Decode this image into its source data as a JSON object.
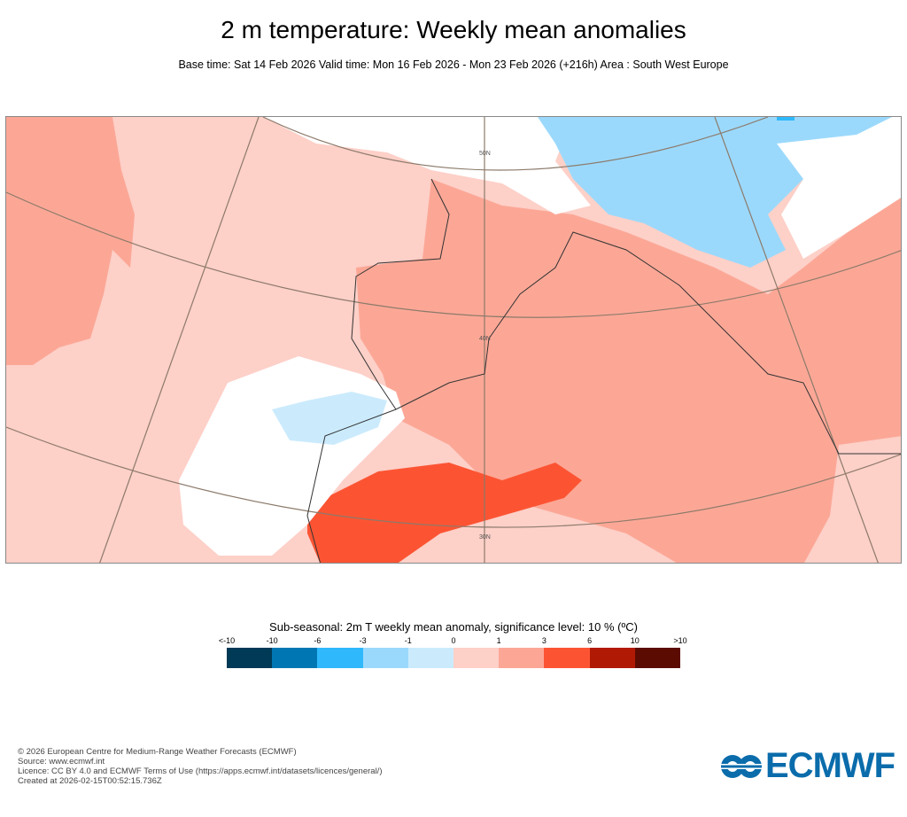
{
  "title": "2 m temperature: Weekly mean anomalies",
  "subtitle": "Base time: Sat 14 Feb 2026 Valid time: Mon 16 Feb 2026 - Mon 23 Feb 2026 (+216h) Area : South West Europe",
  "map": {
    "area": "South West Europe",
    "graticule_labels": [
      "50N",
      "40N",
      "30N"
    ],
    "colors": {
      "light_pink": "#fdd0c8",
      "salmon": "#fca796",
      "red": "#fc5433",
      "white": "#ffffff",
      "light_blue": "#cbebfd",
      "blue": "#9bd9fc",
      "mid_blue": "#2fb9fc"
    }
  },
  "legend": {
    "title": "Sub-seasonal: 2m T weekly mean anomaly, significance level: 10 % (ºC)",
    "labels": [
      "<-10",
      "-10",
      "-6",
      "-3",
      "-1",
      "0",
      "1",
      "3",
      "6",
      "10",
      ">10"
    ],
    "colors": [
      "#003a57",
      "#0077b3",
      "#2fb9fc",
      "#9bd9fc",
      "#cbebfd",
      "#fdd0c8",
      "#fca796",
      "#fc5433",
      "#b01a04",
      "#5c0b02"
    ]
  },
  "footer": [
    "© 2026 European Centre for Medium-Range Weather Forecasts (ECMWF)",
    "Source: www.ecmwf.int",
    "Licence: CC BY 4.0 and ECMWF Terms of Use (https://apps.ecmwf.int/datasets/licences/general/)",
    "Created at 2026-02-15T00:52:15.736Z"
  ],
  "logo": "ECMWF"
}
